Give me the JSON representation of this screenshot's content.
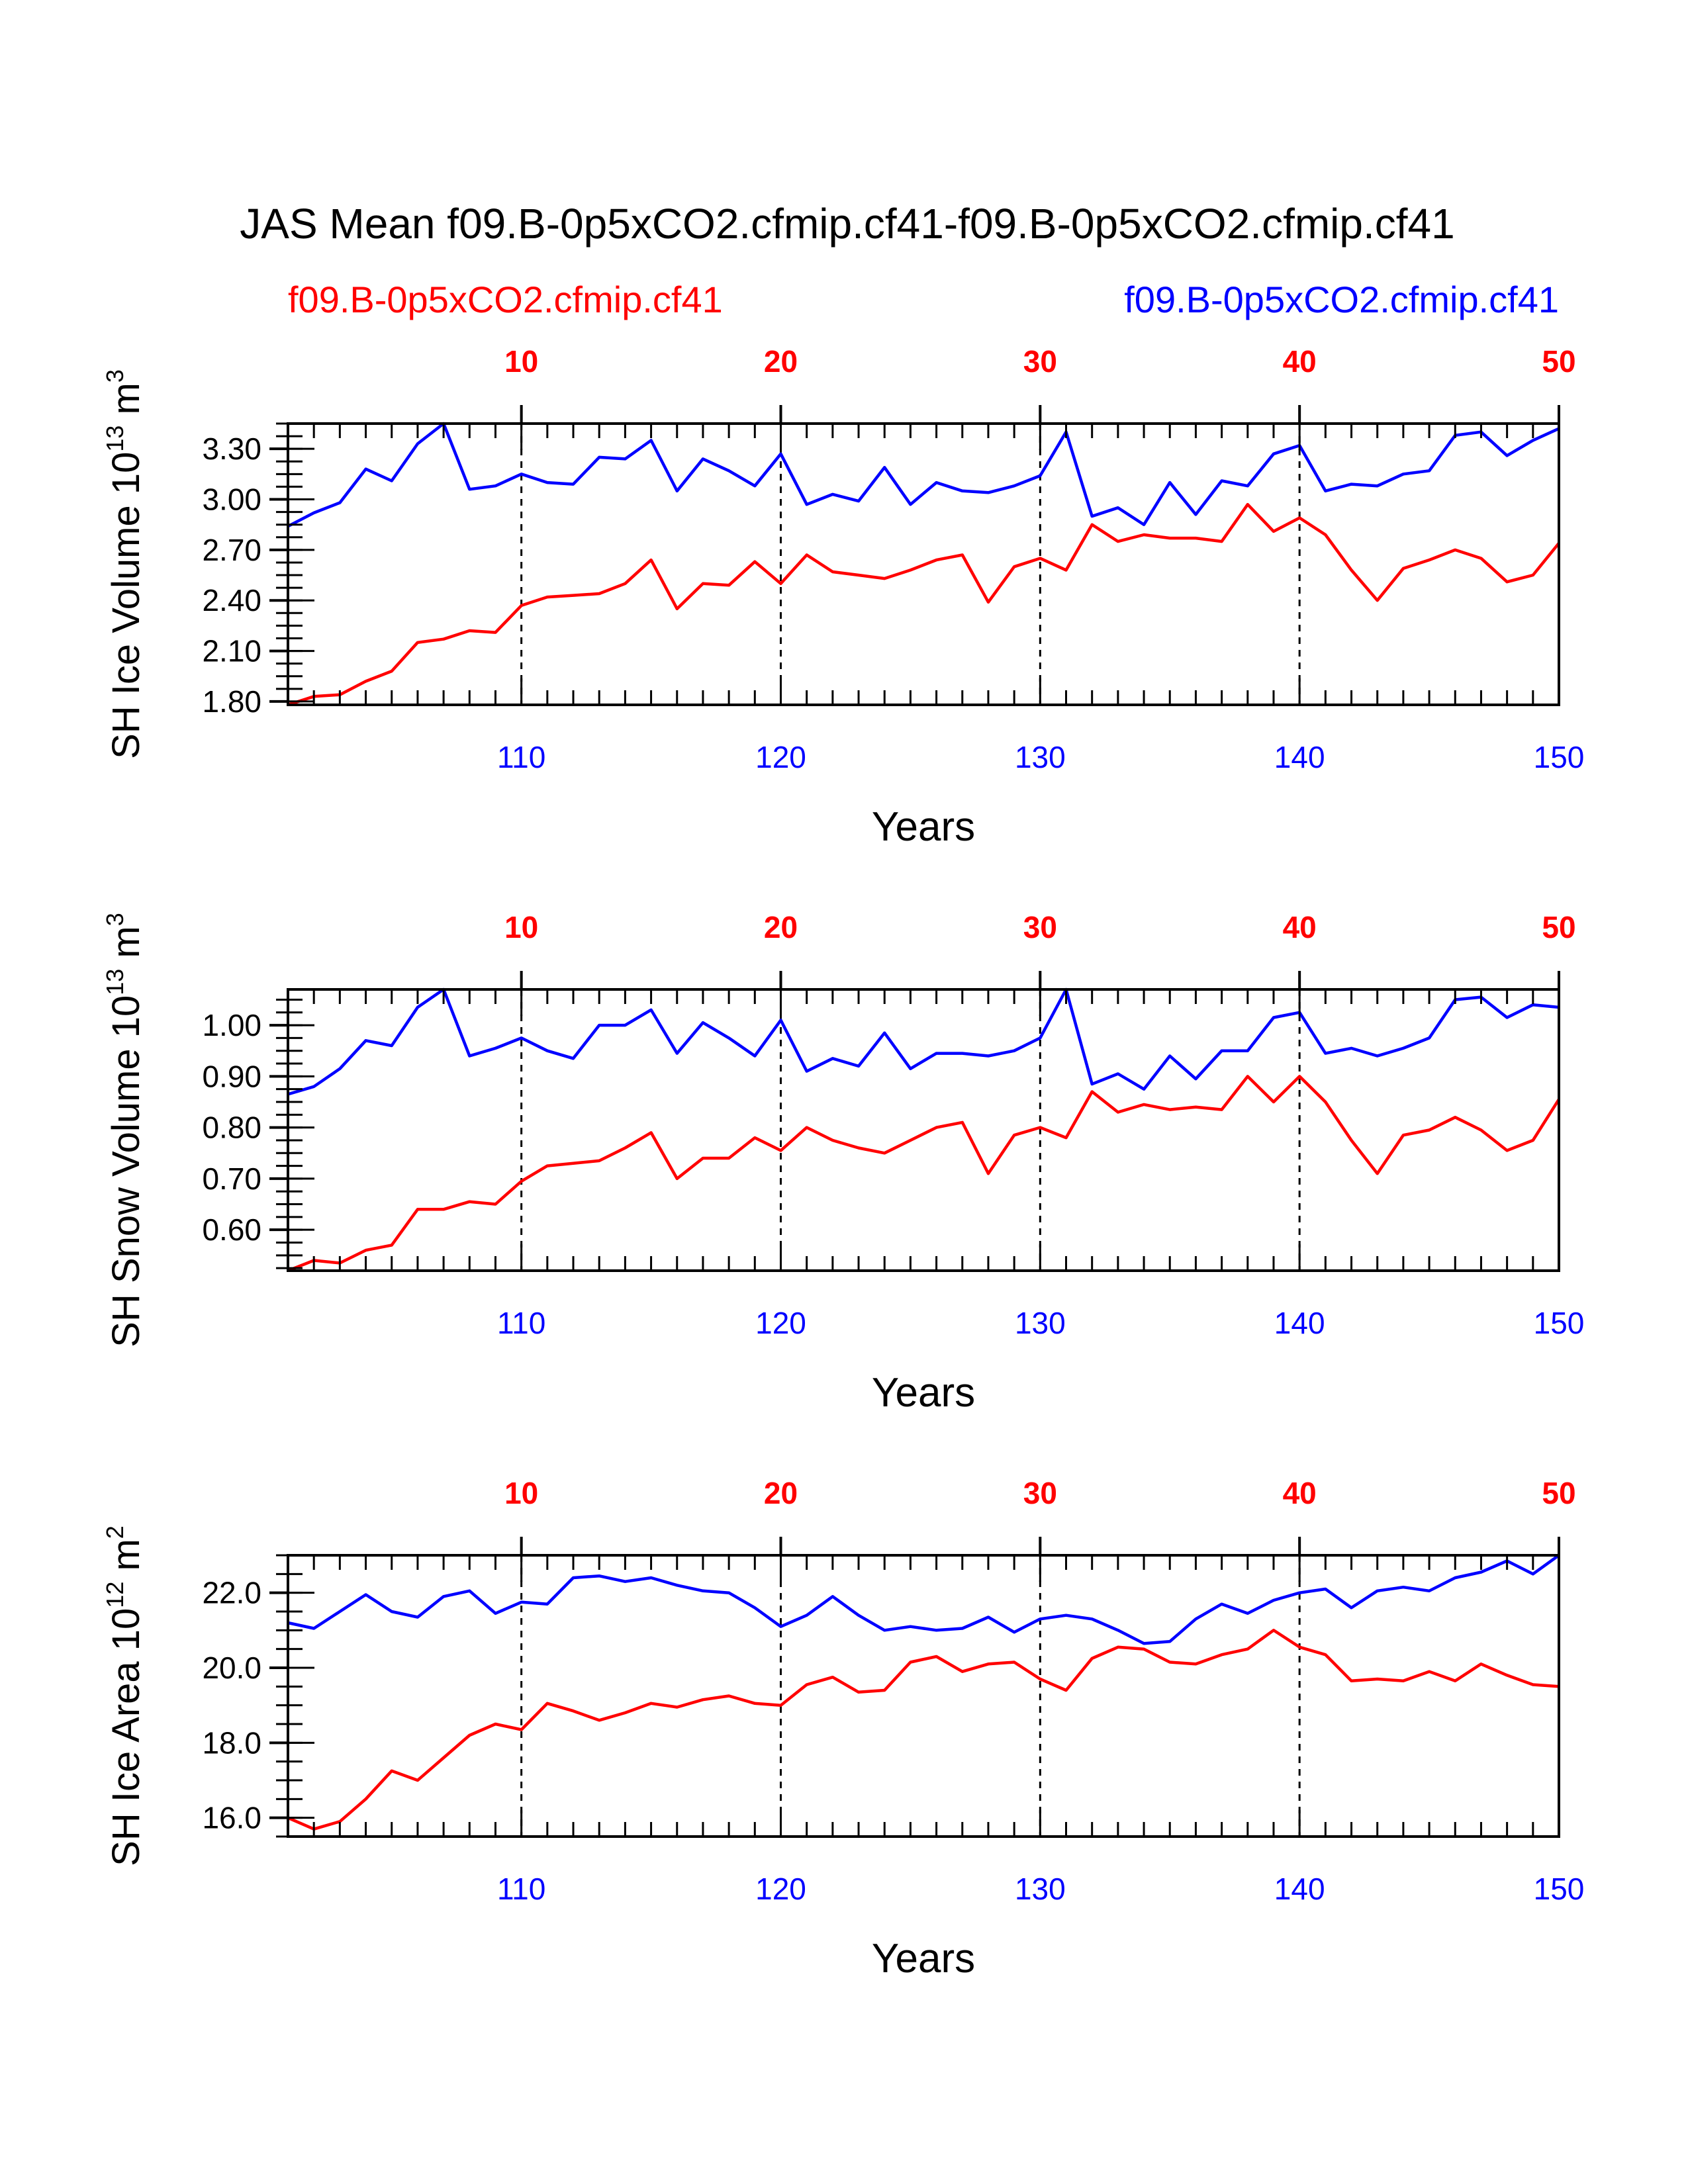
{
  "title": "JAS Mean f09.B-0p5xCO2.cfmip.cf41-f09.B-0p5xCO2.cfmip.cf41",
  "legend": {
    "red_label": "f09.B-0p5xCO2.cfmip.cf41",
    "blue_label": "f09.B-0p5xCO2.cfmip.cf41"
  },
  "colors": {
    "red": "#ff0000",
    "blue": "#0000ff",
    "axis": "#000000"
  },
  "chart_data": [
    {
      "type": "line",
      "ylabel": "SH Ice Volume",
      "yunit_base": "10",
      "yunit_exp": "13",
      "yunit_rest": "m",
      "yunit_rest_exp": "3",
      "xlabel": "Years",
      "ylim": [
        1.78,
        3.45
      ],
      "yticks": [
        "1.80",
        "2.10",
        "2.40",
        "2.70",
        "3.00",
        "3.30"
      ],
      "bottom_xticks": [
        "110",
        "120",
        "130",
        "140",
        "150"
      ],
      "top_xticks": [
        "10",
        "20",
        "30",
        "40",
        "50"
      ],
      "x_bottom": [
        101,
        150
      ],
      "series": [
        {
          "color": "red",
          "top_axis": true,
          "values": [
            1.78,
            1.83,
            1.84,
            1.92,
            1.98,
            2.15,
            2.17,
            2.22,
            2.21,
            2.37,
            2.42,
            2.43,
            2.44,
            2.5,
            2.64,
            2.35,
            2.5,
            2.49,
            2.63,
            2.5,
            2.67,
            2.57,
            2.55,
            2.53,
            2.58,
            2.64,
            2.67,
            2.39,
            2.6,
            2.65,
            2.58,
            2.85,
            2.75,
            2.79,
            2.77,
            2.77,
            2.75,
            2.97,
            2.81,
            2.89,
            2.79,
            2.58,
            2.4,
            2.59,
            2.64,
            2.7,
            2.65,
            2.51,
            2.55,
            2.74
          ]
        },
        {
          "color": "blue",
          "top_axis": false,
          "values": [
            2.84,
            2.92,
            2.98,
            3.18,
            3.11,
            3.33,
            3.45,
            3.06,
            3.08,
            3.15,
            3.1,
            3.09,
            3.25,
            3.24,
            3.35,
            3.05,
            3.24,
            3.17,
            3.08,
            3.27,
            2.97,
            3.03,
            2.99,
            3.19,
            2.97,
            3.1,
            3.05,
            3.04,
            3.08,
            3.14,
            3.4,
            2.9,
            2.95,
            2.85,
            3.1,
            2.91,
            3.11,
            3.08,
            3.27,
            3.32,
            3.05,
            3.09,
            3.08,
            3.15,
            3.17,
            3.38,
            3.4,
            3.26,
            3.35,
            3.42
          ]
        }
      ]
    },
    {
      "type": "line",
      "ylabel": "SH Snow Volume",
      "yunit_base": "10",
      "yunit_exp": "13",
      "yunit_rest": "m",
      "yunit_rest_exp": "3",
      "xlabel": "Years",
      "ylim": [
        0.52,
        1.07
      ],
      "yticks": [
        "0.60",
        "0.70",
        "0.80",
        "0.90",
        "1.00"
      ],
      "bottom_xticks": [
        "110",
        "120",
        "130",
        "140",
        "150"
      ],
      "top_xticks": [
        "10",
        "20",
        "30",
        "40",
        "50"
      ],
      "x_bottom": [
        101,
        150
      ],
      "series": [
        {
          "color": "red",
          "top_axis": true,
          "values": [
            0.52,
            0.54,
            0.535,
            0.56,
            0.57,
            0.64,
            0.64,
            0.655,
            0.65,
            0.695,
            0.725,
            0.73,
            0.735,
            0.76,
            0.79,
            0.7,
            0.74,
            0.74,
            0.78,
            0.755,
            0.8,
            0.775,
            0.76,
            0.75,
            0.775,
            0.8,
            0.81,
            0.71,
            0.785,
            0.8,
            0.78,
            0.87,
            0.83,
            0.845,
            0.835,
            0.84,
            0.835,
            0.9,
            0.85,
            0.9,
            0.85,
            0.775,
            0.71,
            0.785,
            0.795,
            0.82,
            0.795,
            0.755,
            0.775,
            0.855
          ]
        },
        {
          "color": "blue",
          "top_axis": false,
          "values": [
            0.865,
            0.88,
            0.915,
            0.97,
            0.96,
            1.035,
            1.07,
            0.94,
            0.955,
            0.975,
            0.95,
            0.935,
            1.0,
            1.0,
            1.03,
            0.945,
            1.005,
            0.975,
            0.94,
            1.01,
            0.91,
            0.935,
            0.92,
            0.985,
            0.915,
            0.945,
            0.945,
            0.94,
            0.95,
            0.975,
            1.07,
            0.885,
            0.905,
            0.875,
            0.94,
            0.895,
            0.95,
            0.95,
            1.015,
            1.025,
            0.945,
            0.955,
            0.94,
            0.955,
            0.975,
            1.05,
            1.055,
            1.015,
            1.04,
            1.035
          ]
        }
      ]
    },
    {
      "type": "line",
      "ylabel": "SH Ice Area",
      "yunit_base": "10",
      "yunit_exp": "12",
      "yunit_rest": "m",
      "yunit_rest_exp": "2",
      "xlabel": "Years",
      "ylim": [
        15.5,
        23.0
      ],
      "yticks": [
        "16.0",
        "18.0",
        "20.0",
        "22.0"
      ],
      "bottom_xticks": [
        "110",
        "120",
        "130",
        "140",
        "150"
      ],
      "top_xticks": [
        "10",
        "20",
        "30",
        "40",
        "50"
      ],
      "x_bottom": [
        101,
        150
      ],
      "series": [
        {
          "color": "red",
          "top_axis": true,
          "values": [
            16.0,
            15.7,
            15.9,
            16.5,
            17.25,
            17.0,
            17.6,
            18.2,
            18.5,
            18.35,
            19.05,
            18.85,
            18.6,
            18.8,
            19.05,
            18.95,
            19.15,
            19.25,
            19.05,
            19.0,
            19.55,
            19.75,
            19.35,
            19.4,
            20.15,
            20.3,
            19.9,
            20.1,
            20.15,
            19.7,
            19.4,
            20.25,
            20.55,
            20.5,
            20.15,
            20.1,
            20.35,
            20.5,
            21.0,
            20.55,
            20.35,
            19.65,
            19.7,
            19.65,
            19.9,
            19.65,
            20.1,
            19.8,
            19.55,
            19.5
          ]
        },
        {
          "color": "blue",
          "top_axis": false,
          "values": [
            21.2,
            21.05,
            21.5,
            21.95,
            21.5,
            21.35,
            21.9,
            22.05,
            21.45,
            21.75,
            21.7,
            22.4,
            22.45,
            22.3,
            22.4,
            22.2,
            22.05,
            22.0,
            21.6,
            21.1,
            21.4,
            21.9,
            21.4,
            21.0,
            21.1,
            21.0,
            21.05,
            21.35,
            20.95,
            21.3,
            21.4,
            21.3,
            21.0,
            20.65,
            20.7,
            21.3,
            21.7,
            21.45,
            21.8,
            22.0,
            22.1,
            21.6,
            22.05,
            22.15,
            22.05,
            22.4,
            22.55,
            22.85,
            22.5,
            23.0
          ]
        }
      ]
    }
  ]
}
